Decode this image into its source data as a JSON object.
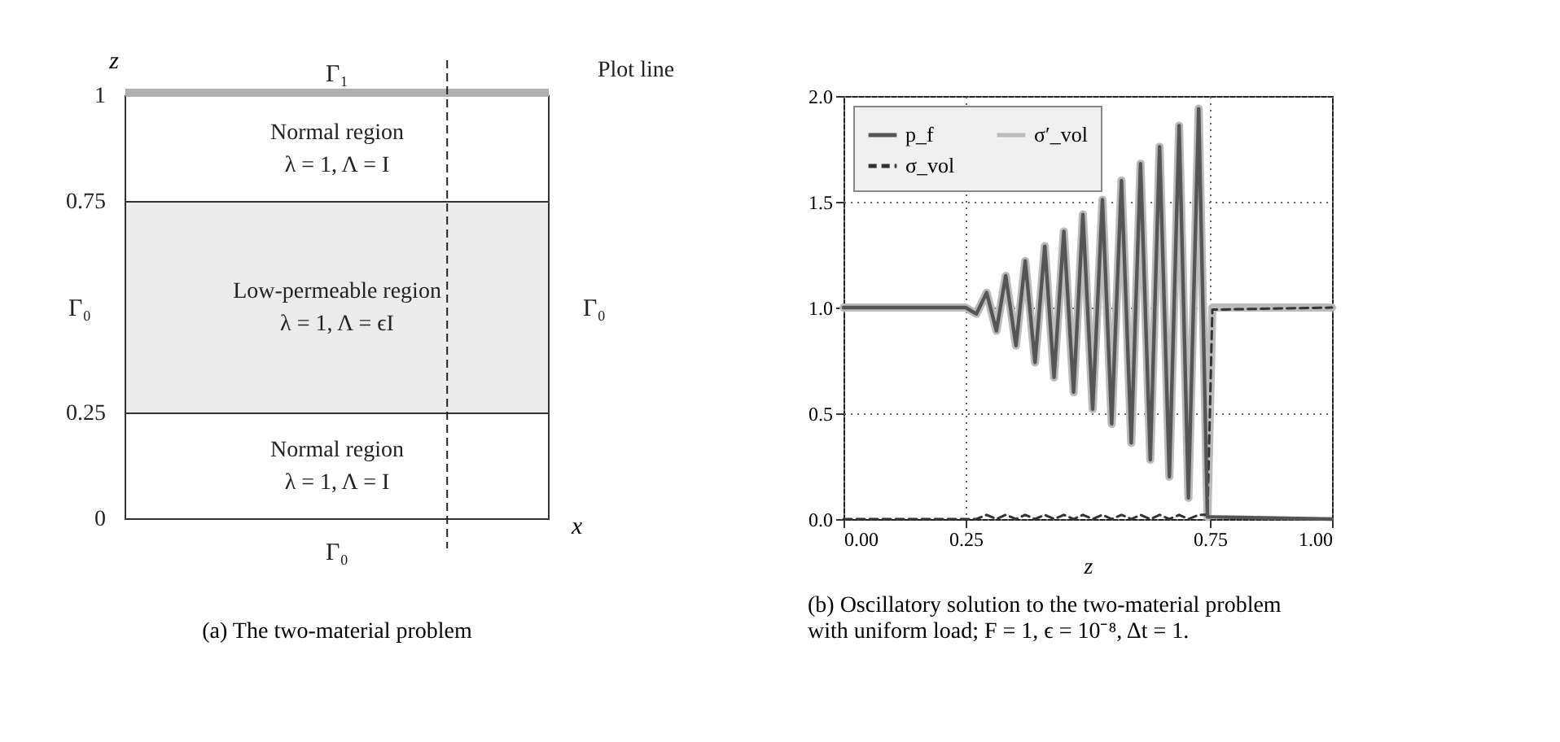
{
  "chart_data": [
    {
      "type": "other",
      "xlabel": "x",
      "ylabel": "z",
      "annotations": [
        "Γ₁",
        "Γ₀",
        "Γ₀",
        "Γ₀",
        "Normal region\nλ = 1,  Λ = I",
        "Low-permeable region\nλ = 1,  Λ = ϵI",
        "Normal region\nλ = 1,  Λ = I",
        "0",
        "0.25",
        "0.75",
        "1",
        "Plot line",
        "(a) The two-material problem"
      ]
    },
    {
      "type": "line",
      "xlabel": "z",
      "xlim": [
        0,
        1
      ],
      "ylim": [
        0,
        2
      ],
      "xticks": [
        {
          "value": 0,
          "label": "0.00"
        },
        {
          "value": 0.25,
          "label": "0.25"
        },
        {
          "value": 0.75,
          "label": "0.75"
        },
        {
          "value": 1,
          "label": "1.00"
        }
      ],
      "yticks": [
        {
          "value": 0,
          "label": "0.0"
        },
        {
          "value": 0.5,
          "label": "0.5"
        },
        {
          "value": 1,
          "label": "1.0"
        },
        {
          "value": 1.5,
          "label": "1.5"
        },
        {
          "value": 2,
          "label": "2.0"
        }
      ],
      "grid": true,
      "legend": "top left",
      "x": [
        0,
        0.25,
        0.272,
        0.293,
        0.313,
        0.332,
        0.353,
        0.372,
        0.392,
        0.412,
        0.431,
        0.451,
        0.471,
        0.49,
        0.51,
        0.53,
        0.549,
        0.569,
        0.589,
        0.608,
        0.628,
        0.647,
        0.667,
        0.687,
        0.706,
        0.727,
        0.745,
        0.755,
        1
      ],
      "series": [
        {
          "name": "p_f",
          "color": "#555555",
          "line_style": "solid",
          "values": [
            1,
            1,
            0.97,
            1.07,
            0.89,
            1.15,
            0.82,
            1.22,
            0.74,
            1.29,
            0.67,
            1.36,
            0.6,
            1.44,
            0.52,
            1.51,
            0.45,
            1.6,
            0.36,
            1.68,
            0.28,
            1.76,
            0.2,
            1.86,
            0.1,
            1.94,
            0.01,
            0.01,
            0
          ]
        },
        {
          "name": "σ_vol",
          "color": "#333333",
          "line_style": "dashed",
          "values": [
            0,
            0,
            0,
            0.02,
            0,
            0.02,
            0,
            0.02,
            0,
            0.02,
            0,
            0.02,
            0,
            0.02,
            0,
            0.02,
            0,
            0.02,
            0,
            0.02,
            0,
            0.02,
            0,
            0.02,
            0,
            0.02,
            0.02,
            0.99,
            1
          ]
        },
        {
          "name": "σ′_vol",
          "color": "#bbbbbb",
          "line_style": "solid",
          "values": [
            1,
            1,
            0.97,
            1.07,
            0.89,
            1.15,
            0.82,
            1.22,
            0.74,
            1.29,
            0.67,
            1.36,
            0.6,
            1.44,
            0.52,
            1.51,
            0.45,
            1.6,
            0.36,
            1.68,
            0.28,
            1.76,
            0.2,
            1.86,
            0.1,
            1.94,
            0.01,
            1,
            1
          ]
        }
      ],
      "annotations": [
        "(b) Oscillatory solution to the two-material problem with uniform load; F = 1, ϵ = 10⁻⁸, Δt = 1."
      ]
    }
  ]
}
